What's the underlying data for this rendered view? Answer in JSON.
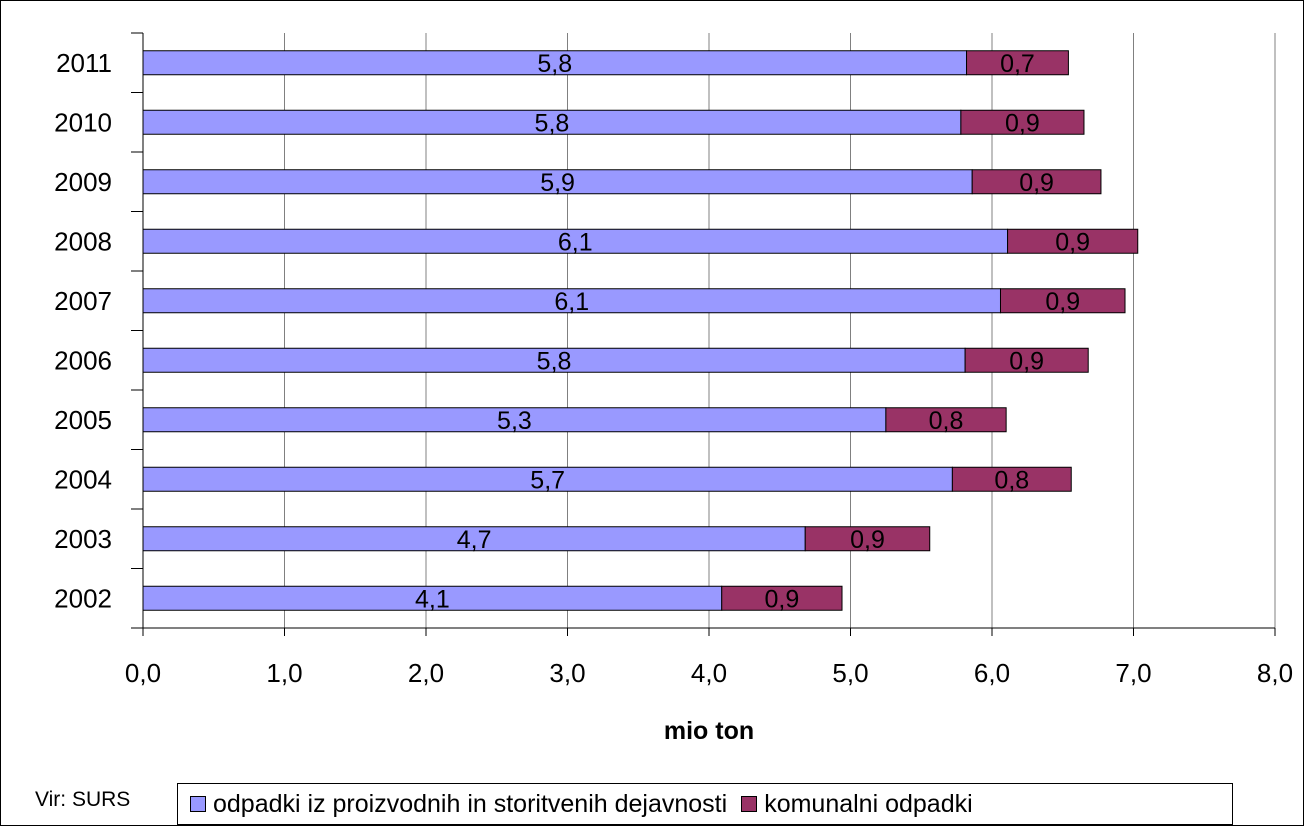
{
  "chart_data": {
    "type": "bar",
    "orientation": "horizontal",
    "stacked": true,
    "categories": [
      "2002",
      "2003",
      "2004",
      "2005",
      "2006",
      "2007",
      "2008",
      "2009",
      "2010",
      "2011"
    ],
    "series": [
      {
        "name": "odpadki iz proizvodnih in storitvenih dejavnosti",
        "color": "#9999ff",
        "values": [
          4.09,
          4.68,
          5.72,
          5.25,
          5.81,
          6.06,
          6.11,
          5.86,
          5.78,
          5.82
        ],
        "labels": [
          "4,1",
          "4,7",
          "5,7",
          "5,3",
          "5,8",
          "6,1",
          "6,1",
          "5,9",
          "5,8",
          "5,8"
        ]
      },
      {
        "name": "komunalni odpadki",
        "color": "#993366",
        "values": [
          0.85,
          0.88,
          0.84,
          0.85,
          0.87,
          0.88,
          0.92,
          0.91,
          0.87,
          0.72
        ],
        "labels": [
          "0,9",
          "0,9",
          "0,8",
          "0,8",
          "0,9",
          "0,9",
          "0,9",
          "0,9",
          "0,9",
          "0,7"
        ]
      }
    ],
    "xlabel": "mio ton",
    "xlim": [
      0,
      8
    ],
    "xticks": [
      "0,0",
      "1,0",
      "2,0",
      "3,0",
      "4,0",
      "5,0",
      "6,0",
      "7,0",
      "8,0"
    ],
    "grid": "vertical gridlines",
    "legend": "bottom"
  },
  "source": "Vir: SURS"
}
